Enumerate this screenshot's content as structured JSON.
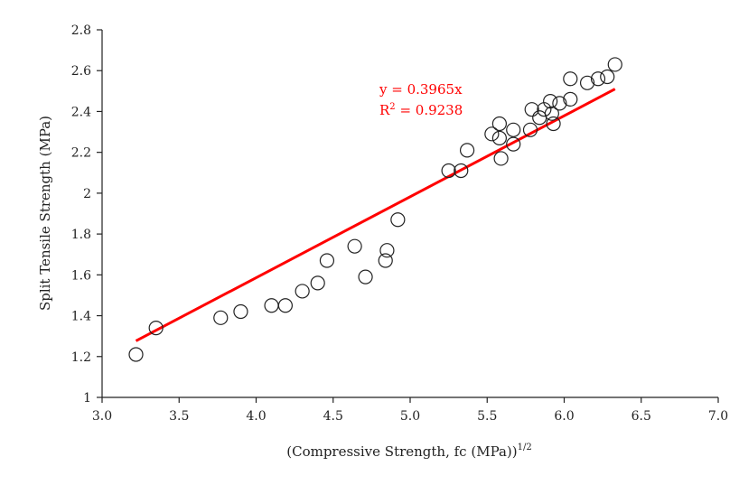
{
  "chart_data": {
    "type": "scatter",
    "xlabel_main": "(Compressive Strength, fc (MPa))",
    "xlabel_sup": "1/2",
    "ylabel": "Split Tensile Strength (MPa)",
    "xlim": [
      3.0,
      7.0
    ],
    "ylim": [
      1.0,
      2.8
    ],
    "x_ticks": [
      "3.0",
      "3.5",
      "4.0",
      "4.5",
      "5.0",
      "5.5",
      "6.0",
      "6.5",
      "7.0"
    ],
    "y_ticks": [
      "1",
      "1.2",
      "1.4",
      "1.6",
      "1.8",
      "2",
      "2.2",
      "2.4",
      "2.6",
      "2.8"
    ],
    "grid": false,
    "series": [
      {
        "marker": "open-circle",
        "points": [
          [
            3.22,
            1.21
          ],
          [
            3.35,
            1.34
          ],
          [
            3.77,
            1.39
          ],
          [
            3.9,
            1.42
          ],
          [
            4.1,
            1.45
          ],
          [
            4.19,
            1.45
          ],
          [
            4.3,
            1.52
          ],
          [
            4.4,
            1.56
          ],
          [
            4.46,
            1.67
          ],
          [
            4.64,
            1.74
          ],
          [
            4.71,
            1.59
          ],
          [
            4.84,
            1.67
          ],
          [
            4.85,
            1.72
          ],
          [
            4.92,
            1.87
          ],
          [
            5.25,
            2.11
          ],
          [
            5.33,
            2.11
          ],
          [
            5.37,
            2.21
          ],
          [
            5.53,
            2.29
          ],
          [
            5.58,
            2.34
          ],
          [
            5.58,
            2.27
          ],
          [
            5.59,
            2.17
          ],
          [
            5.67,
            2.31
          ],
          [
            5.67,
            2.24
          ],
          [
            5.78,
            2.31
          ],
          [
            5.79,
            2.41
          ],
          [
            5.84,
            2.37
          ],
          [
            5.87,
            2.41
          ],
          [
            5.91,
            2.45
          ],
          [
            5.92,
            2.39
          ],
          [
            5.93,
            2.34
          ],
          [
            5.97,
            2.44
          ],
          [
            6.04,
            2.46
          ],
          [
            6.04,
            2.56
          ],
          [
            6.15,
            2.54
          ],
          [
            6.22,
            2.56
          ],
          [
            6.28,
            2.57
          ],
          [
            6.33,
            2.63
          ]
        ]
      }
    ],
    "trendline": {
      "slope": 0.3965,
      "x_range": [
        3.22,
        6.33
      ],
      "color": "#ff0000",
      "equation_label": "y = 0.3965x",
      "r2_prefix": "R",
      "r2_sup": "2",
      "r2_suffix": " = 0.9238"
    }
  }
}
